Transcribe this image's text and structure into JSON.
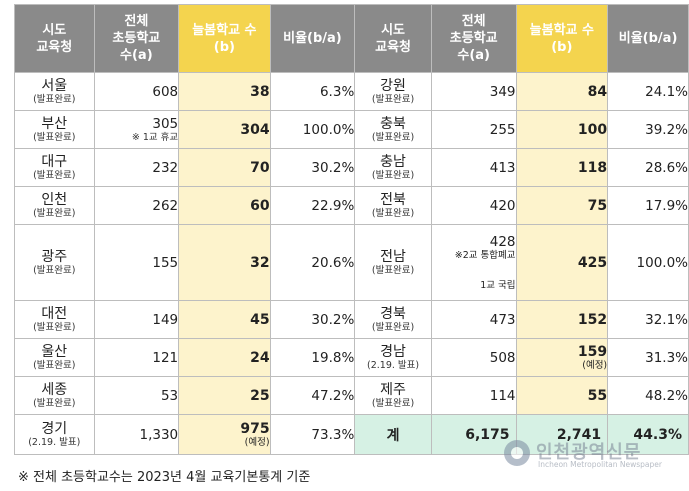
{
  "headers": {
    "left": [
      "시도\n교육청",
      "전체\n초등학교\n수(a)",
      "늘봄학교 수\n(b)",
      "비율(b/a)"
    ],
    "right": [
      "시도\n교육청",
      "전체\n초등학교\n수(a)",
      "늘봄학교 수\n(b)",
      "비율(b/a)"
    ]
  },
  "left_rows": [
    {
      "region": "서울",
      "status": "(발표완료)",
      "total": "608",
      "total_note": "",
      "neulbom": "38",
      "neulbom_note": "",
      "ratio": "6.3%"
    },
    {
      "region": "부산",
      "status": "(발표완료)",
      "total": "305",
      "total_note": "※ 1교 휴교",
      "neulbom": "304",
      "neulbom_note": "",
      "ratio": "100.0%"
    },
    {
      "region": "대구",
      "status": "(발표완료)",
      "total": "232",
      "total_note": "",
      "neulbom": "70",
      "neulbom_note": "",
      "ratio": "30.2%"
    },
    {
      "region": "인천",
      "status": "(발표완료)",
      "total": "262",
      "total_note": "",
      "neulbom": "60",
      "neulbom_note": "",
      "ratio": "22.9%"
    },
    {
      "region": "광주",
      "status": "(발표완료)",
      "total": "155",
      "total_note": "",
      "neulbom": "32",
      "neulbom_note": "",
      "ratio": "20.6%"
    },
    {
      "region": "대전",
      "status": "(발표완료)",
      "total": "149",
      "total_note": "",
      "neulbom": "45",
      "neulbom_note": "",
      "ratio": "30.2%"
    },
    {
      "region": "울산",
      "status": "(발표완료)",
      "total": "121",
      "total_note": "",
      "neulbom": "24",
      "neulbom_note": "",
      "ratio": "19.8%"
    },
    {
      "region": "세종",
      "status": "(발표완료)",
      "total": "53",
      "total_note": "",
      "neulbom": "25",
      "neulbom_note": "",
      "ratio": "47.2%"
    },
    {
      "region": "경기",
      "status": "(2.19. 발표)",
      "total": "1,330",
      "total_note": "",
      "neulbom": "975",
      "neulbom_note": "(예정)",
      "ratio": "73.3%"
    }
  ],
  "right_rows": [
    {
      "region": "강원",
      "status": "(발표완료)",
      "total": "349",
      "neulbom": "84",
      "neulbom_note": "",
      "ratio": "24.1%"
    },
    {
      "region": "충북",
      "status": "(발표완료)",
      "total": "255",
      "neulbom": "100",
      "neulbom_note": "",
      "ratio": "39.2%"
    },
    {
      "region": "충남",
      "status": "(발표완료)",
      "total": "413",
      "neulbom": "118",
      "neulbom_note": "",
      "ratio": "28.6%"
    },
    {
      "region": "전북",
      "status": "(발표완료)",
      "total": "420",
      "neulbom": "75",
      "neulbom_note": "",
      "ratio": "17.9%"
    },
    {
      "region": "전남",
      "status": "(발표완료)",
      "total": "428",
      "total_note1": "※2교 통합폐교",
      "total_note2": "1교 국립",
      "neulbom": "425",
      "neulbom_note": "",
      "ratio": "100.0%"
    },
    {
      "region": "경북",
      "status": "(발표완료)",
      "total": "473",
      "neulbom": "152",
      "neulbom_note": "",
      "ratio": "32.1%"
    },
    {
      "region": "경남",
      "status": "(2.19. 발표)",
      "total": "508",
      "neulbom": "159",
      "neulbom_note": "(예정)",
      "ratio": "31.3%"
    },
    {
      "region": "제주",
      "status": "(발표완료)",
      "total": "114",
      "neulbom": "55",
      "neulbom_note": "",
      "ratio": "48.2%"
    }
  ],
  "total_row": {
    "label": "계",
    "total": "6,175",
    "neulbom": "2,741",
    "ratio": "44.3%"
  },
  "footnote": "※ 전체 초등학교수는 2023년 4월 교육기본통계 기준",
  "watermark": {
    "ko": "인천광역신문",
    "en": "Incheon Metropolitan Newspaper"
  }
}
